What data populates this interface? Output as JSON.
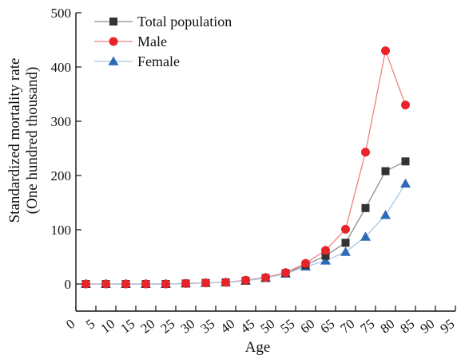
{
  "chart_data": {
    "type": "line",
    "xlabel": "Age",
    "ylabel_lines": [
      "Standardized mortality rate",
      "(One hundred thousand)"
    ],
    "xlim": [
      0,
      95
    ],
    "ylim": [
      -30,
      500
    ],
    "x_ticks": [
      0,
      5,
      10,
      15,
      20,
      25,
      30,
      35,
      40,
      45,
      50,
      55,
      60,
      65,
      70,
      75,
      80,
      85,
      90,
      95
    ],
    "x_tick_labels": [
      "0",
      "5",
      "10",
      "15",
      "20",
      "25",
      "30",
      "35",
      "40",
      "45",
      "50",
      "55",
      "60",
      "65",
      "70",
      "75",
      "80",
      "85",
      "90",
      "95"
    ],
    "y_ticks": [
      0,
      100,
      200,
      300,
      400,
      500
    ],
    "y_tick_labels": [
      "0",
      "100",
      "200",
      "300",
      "400",
      "500"
    ],
    "grid": false,
    "legend_position": "top-left",
    "x": [
      2.5,
      7.5,
      12.5,
      17.5,
      22.5,
      27.5,
      32.5,
      37.5,
      42.5,
      47.5,
      52.5,
      57.5,
      62.5,
      67.5,
      72.5,
      77.5,
      82.5
    ],
    "series": [
      {
        "name": "Total population",
        "marker": "square",
        "line_color": "#8c8c8c",
        "marker_color": "#333333",
        "values": [
          0,
          0,
          0,
          0,
          0,
          1,
          2,
          3,
          6,
          11,
          20,
          35,
          52,
          76,
          140,
          208,
          226
        ]
      },
      {
        "name": "Male",
        "marker": "circle",
        "line_color": "#f08080",
        "marker_color": "#e8242a",
        "values": [
          0,
          0,
          0,
          0,
          0,
          1,
          2,
          3,
          7,
          12,
          21,
          38,
          62,
          101,
          243,
          430,
          330
        ]
      },
      {
        "name": "Female",
        "marker": "triangle",
        "line_color": "#a9c8e8",
        "marker_color": "#2e6bb7",
        "values": [
          0,
          0,
          0,
          0,
          0,
          1,
          2,
          3,
          6,
          11,
          19,
          32,
          43,
          59,
          87,
          127,
          185
        ]
      }
    ]
  }
}
